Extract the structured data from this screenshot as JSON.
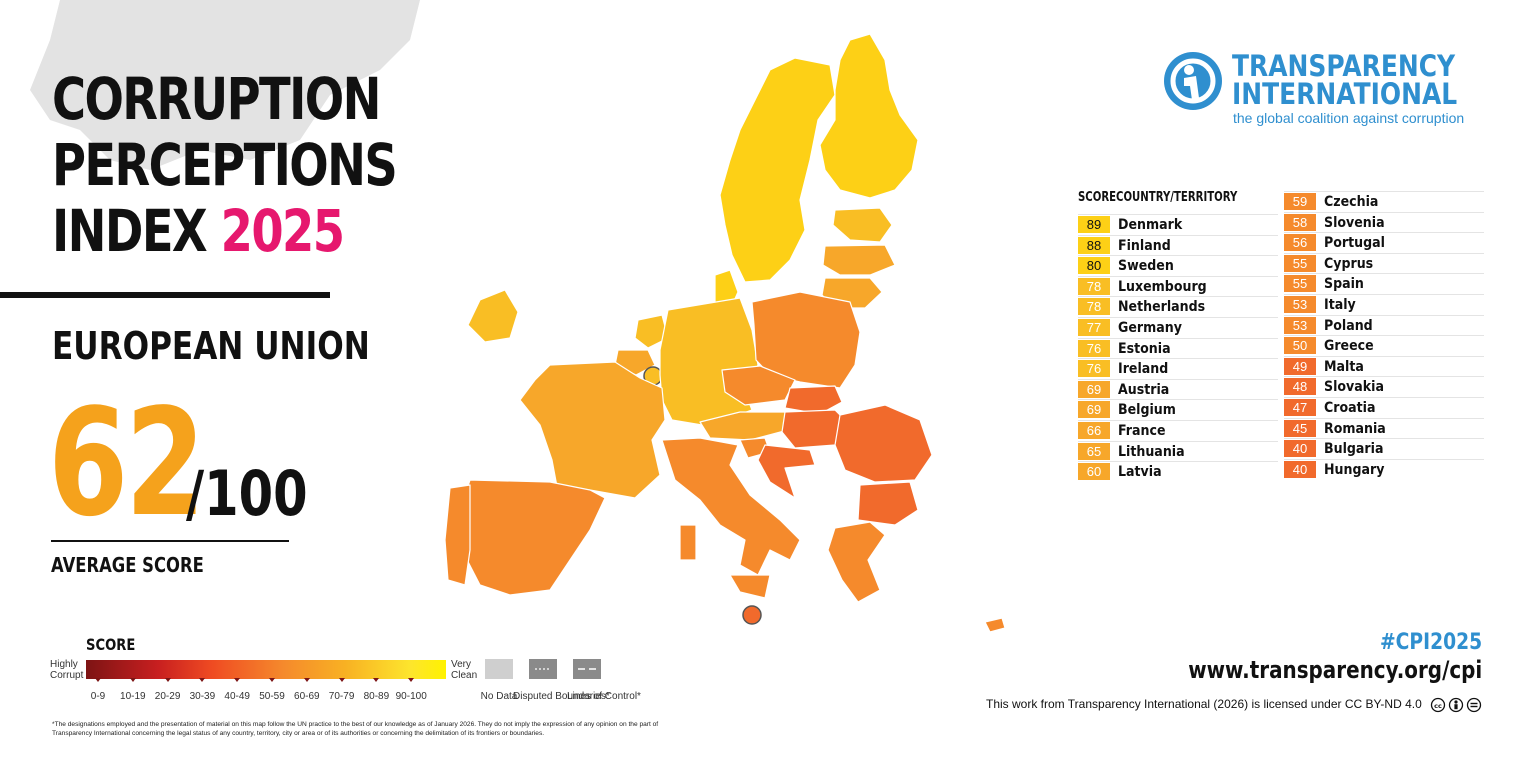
{
  "title": {
    "line1": "CORRUPTION",
    "line2": "PERCEPTIONS",
    "line3": "INDEX",
    "year": "2025"
  },
  "region": "EUROPEAN UNION",
  "average": {
    "score": "62",
    "out_of": "/100",
    "label": "AVERAGE SCORE"
  },
  "logo": {
    "line1": "TRANSPARENCY",
    "line2": "INTERNATIONAL",
    "tagline": "the global coalition against corruption"
  },
  "table": {
    "score_header": "SCORE",
    "country_header": "COUNTRY/TERRITORY",
    "rows": [
      {
        "score": "89",
        "name": "Denmark",
        "color": "#fdd016"
      },
      {
        "score": "88",
        "name": "Finland",
        "color": "#fdd016"
      },
      {
        "score": "80",
        "name": "Sweden",
        "color": "#fdd016"
      },
      {
        "score": "78",
        "name": "Luxembourg",
        "color": "#f9be24"
      },
      {
        "score": "78",
        "name": "Netherlands",
        "color": "#f9be24"
      },
      {
        "score": "77",
        "name": "Germany",
        "color": "#f9be24"
      },
      {
        "score": "76",
        "name": "Estonia",
        "color": "#f9be24"
      },
      {
        "score": "76",
        "name": "Ireland",
        "color": "#f9be24"
      },
      {
        "score": "69",
        "name": "Austria",
        "color": "#f7a72a"
      },
      {
        "score": "69",
        "name": "Belgium",
        "color": "#f7a72a"
      },
      {
        "score": "66",
        "name": "France",
        "color": "#f7a72a"
      },
      {
        "score": "65",
        "name": "Lithuania",
        "color": "#f7a72a"
      },
      {
        "score": "60",
        "name": "Latvia",
        "color": "#f7a72a"
      },
      {
        "score": "59",
        "name": "Czechia",
        "color": "#f58a2c"
      },
      {
        "score": "58",
        "name": "Slovenia",
        "color": "#f58a2c"
      },
      {
        "score": "56",
        "name": "Portugal",
        "color": "#f58a2c"
      },
      {
        "score": "55",
        "name": "Cyprus",
        "color": "#f58a2c"
      },
      {
        "score": "55",
        "name": "Spain",
        "color": "#f58a2c"
      },
      {
        "score": "53",
        "name": "Italy",
        "color": "#f58a2c"
      },
      {
        "score": "53",
        "name": "Poland",
        "color": "#f58a2c"
      },
      {
        "score": "50",
        "name": "Greece",
        "color": "#f58a2c"
      },
      {
        "score": "49",
        "name": "Malta",
        "color": "#f16a2c"
      },
      {
        "score": "48",
        "name": "Slovakia",
        "color": "#f16a2c"
      },
      {
        "score": "47",
        "name": "Croatia",
        "color": "#f16a2c"
      },
      {
        "score": "45",
        "name": "Romania",
        "color": "#f16a2c"
      },
      {
        "score": "40",
        "name": "Bulgaria",
        "color": "#f16a2c"
      },
      {
        "score": "40",
        "name": "Hungary",
        "color": "#f16a2c"
      }
    ]
  },
  "hashtag": "#CPI2025",
  "url": "www.transparency.org/cpi",
  "license": "This work from Transparency International (2026) is licensed under CC BY-ND 4.0",
  "legend": {
    "title": "SCORE",
    "left_label": "Highly Corrupt",
    "right_label": "Very Clean",
    "ticks": [
      "0-9",
      "10-19",
      "20-29",
      "30-39",
      "40-49",
      "50-59",
      "60-69",
      "70-79",
      "80-89",
      "90-100"
    ],
    "no_data": "No Data",
    "disputed": "Disputed Boundaries*",
    "lines": "Lines of Control*",
    "swatch_color": "#cfcfcf",
    "boundary_color": "#8a8a8a"
  },
  "disclaimer": "*The designations employed and the presentation of material on this map follow the UN practice to the best of our knowledge as of January 2026. They do not imply the expression of any opinion on the part of Transparency International concerning the legal status of any country, territory, city or area or of its authorities or concerning the delimitation of its frontiers or boundaries.",
  "colors": {
    "accent_pink": "#e6186e",
    "accent_orange": "#f5a21c",
    "brand_blue": "#2f8fcf",
    "band_80_89": "#fdd016",
    "band_70_79": "#f9be24",
    "band_60_69": "#f7a72a",
    "band_50_59": "#f58a2c",
    "band_40_49": "#f16a2c"
  }
}
